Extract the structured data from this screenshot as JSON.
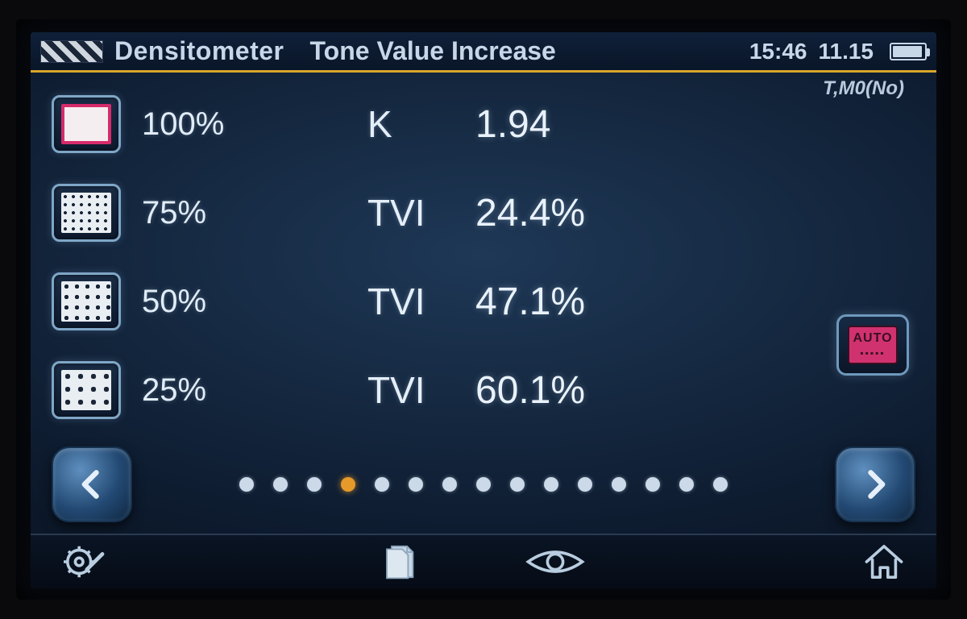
{
  "header": {
    "app_title": "Densitometer",
    "mode_title": "Tone Value Increase",
    "time": "15:46",
    "date": "11.15",
    "battery_pct": 85
  },
  "mode_tag": "T,M0(No)",
  "measurements": [
    {
      "percent": "100%",
      "label": "K",
      "value": "1.94",
      "patch": "solid"
    },
    {
      "percent": "75%",
      "label": "TVI",
      "value": "24.4%",
      "patch": "dots75"
    },
    {
      "percent": "50%",
      "label": "TVI",
      "value": "47.1%",
      "patch": "dots50"
    },
    {
      "percent": "25%",
      "label": "TVI",
      "value": "60.1%",
      "patch": "dots25"
    }
  ],
  "auto_label": "AUTO",
  "pager": {
    "count": 15,
    "active_index": 3
  },
  "colors": {
    "accent_orange": "#e69a2a",
    "accent_magenta": "#d0326f",
    "header_rule": "#d9a62a"
  }
}
